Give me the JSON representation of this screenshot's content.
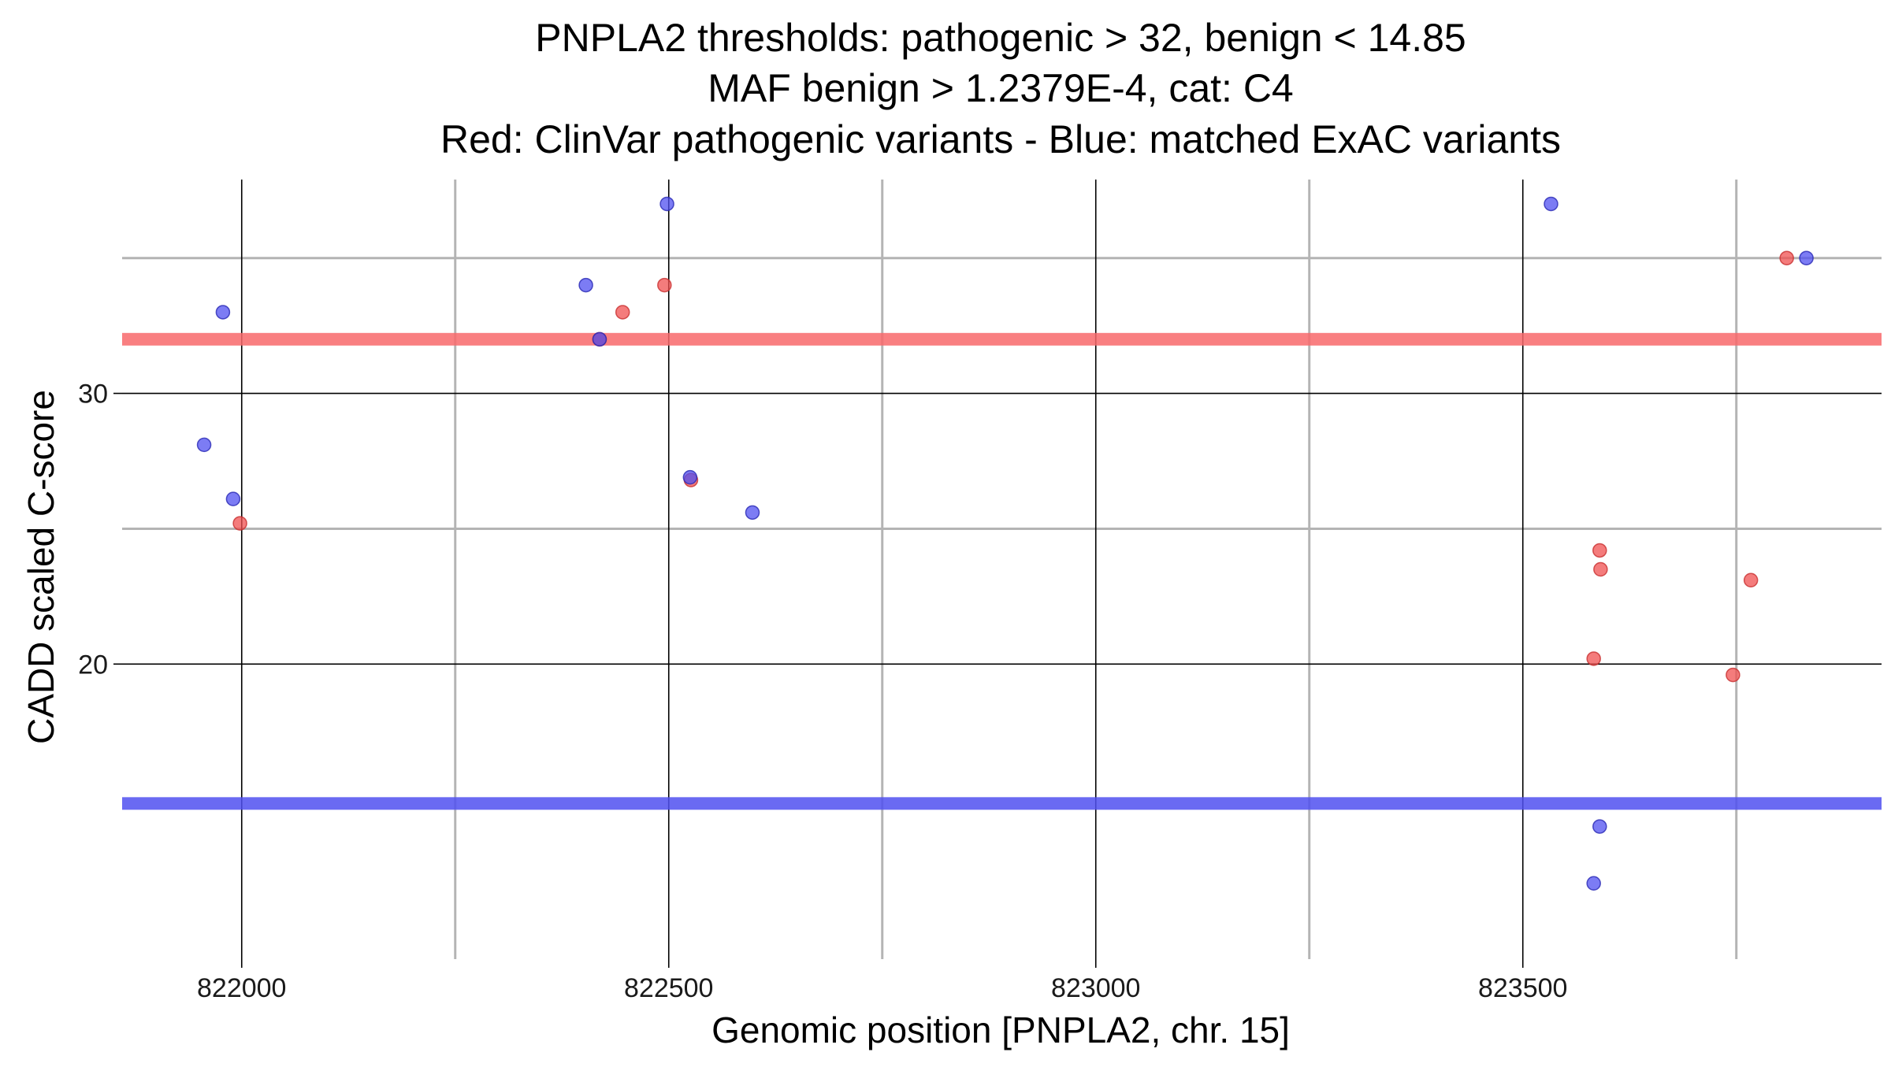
{
  "chart_data": {
    "type": "scatter",
    "title_lines": [
      "PNPLA2 thresholds: pathogenic > 32, benign < 14.85",
      "MAF benign > 1.2379E-4, cat: C4",
      "Red: ClinVar pathogenic variants - Blue: matched ExAC variants"
    ],
    "xlabel": "Genomic position [PNPLA2, chr. 15]",
    "ylabel": "CADD scaled C-score",
    "xlim": [
      821860,
      823920
    ],
    "ylim": [
      9.1,
      37.9
    ],
    "x_ticks": [
      822000,
      822500,
      823000,
      823500
    ],
    "x_tick_labels": [
      "822000",
      "822500",
      "823000",
      "823500"
    ],
    "x_minor_ticks": [
      822250,
      822750,
      823250,
      823750
    ],
    "y_ticks": [
      20,
      30
    ],
    "y_tick_labels": [
      "20",
      "30"
    ],
    "y_minor_ticks": [
      25,
      35
    ],
    "thresholds": [
      {
        "name": "pathogenic",
        "value": 32,
        "color": "#f8696b"
      },
      {
        "name": "benign",
        "value": 14.85,
        "color": "#5050f0"
      }
    ],
    "colors": {
      "red": "#f05050",
      "blue": "#5050f0",
      "red_stroke": "#c83030",
      "blue_stroke": "#2828b4",
      "major_grid": "#000000",
      "minor_grid": "#b4b4b4"
    },
    "series": [
      {
        "name": "ClinVar pathogenic variants",
        "color": "red",
        "points": [
          {
            "x": 821998,
            "y": 25.2
          },
          {
            "x": 822419,
            "y": 32.0
          },
          {
            "x": 822446,
            "y": 33.0
          },
          {
            "x": 822495,
            "y": 34.0
          },
          {
            "x": 822526,
            "y": 26.8
          },
          {
            "x": 823583,
            "y": 20.2
          },
          {
            "x": 823590,
            "y": 24.2
          },
          {
            "x": 823591,
            "y": 23.5
          },
          {
            "x": 823746,
            "y": 19.6
          },
          {
            "x": 823767,
            "y": 23.1
          },
          {
            "x": 823809,
            "y": 35.0
          }
        ]
      },
      {
        "name": "matched ExAC variants",
        "color": "blue",
        "points": [
          {
            "x": 821956,
            "y": 28.1
          },
          {
            "x": 821978,
            "y": 33.0
          },
          {
            "x": 821990,
            "y": 26.1
          },
          {
            "x": 822403,
            "y": 34.0
          },
          {
            "x": 822419,
            "y": 32.0
          },
          {
            "x": 822498,
            "y": 37.0
          },
          {
            "x": 822525,
            "y": 26.9
          },
          {
            "x": 822598,
            "y": 25.6
          },
          {
            "x": 823533,
            "y": 37.0
          },
          {
            "x": 823583,
            "y": 11.9
          },
          {
            "x": 823590,
            "y": 14.0
          },
          {
            "x": 823832,
            "y": 35.0
          }
        ]
      }
    ]
  }
}
